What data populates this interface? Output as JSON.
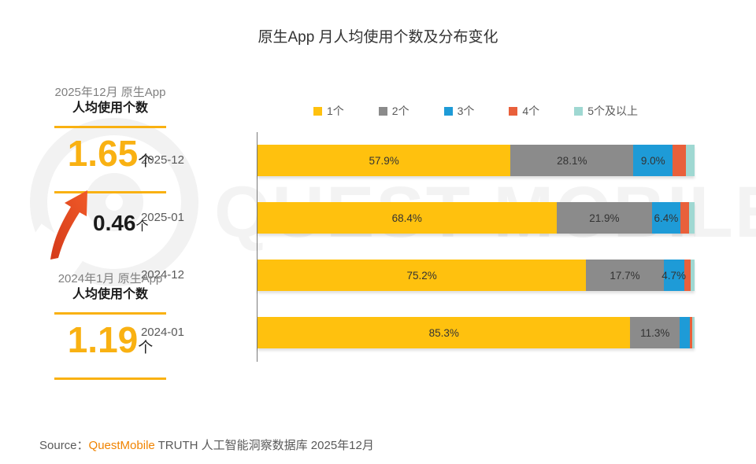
{
  "title": "原生App 月人均使用个数及分布变化",
  "colors": {
    "accent_yellow": "#F9B112",
    "arrow_red_dark": "#D43A1A",
    "arrow_red_light": "#F05A28",
    "brand_orange": "#F08300"
  },
  "left_panel": {
    "top": {
      "period": "2025年12月 原生App",
      "metric_label": "人均使用个数",
      "value": "1.65",
      "unit": "个"
    },
    "delta": {
      "icon": "up-arrow-icon",
      "value": "0.46",
      "unit": "个"
    },
    "bottom": {
      "period": "2024年1月 原生App",
      "metric_label": "人均使用个数",
      "value": "1.19",
      "unit": "个"
    }
  },
  "chart_data": {
    "type": "bar",
    "orientation": "horizontal-stacked",
    "unit": "percent",
    "categories": [
      "2025-12",
      "2025-01",
      "2024-12",
      "2024-01"
    ],
    "series": [
      {
        "name": "1个",
        "color": "#FFC10E",
        "values": [
          57.9,
          68.4,
          75.2,
          85.3
        ]
      },
      {
        "name": "2个",
        "color": "#8B8B8B",
        "values": [
          28.1,
          21.9,
          17.7,
          11.3
        ]
      },
      {
        "name": "3个",
        "color": "#1E9BD7",
        "values": [
          9.0,
          6.4,
          4.7,
          2.3
        ]
      },
      {
        "name": "4个",
        "color": "#E9603B",
        "values": [
          3.0,
          2.0,
          1.5,
          0.6
        ]
      },
      {
        "name": "5个及以上",
        "color": "#9FD8D2",
        "values": [
          2.0,
          1.3,
          0.9,
          0.5
        ]
      }
    ],
    "shown_labels": [
      [
        "57.9%",
        "28.1%",
        "9.0%",
        "",
        ""
      ],
      [
        "68.4%",
        "21.9%",
        "6.4%",
        "",
        ""
      ],
      [
        "75.2%",
        "17.7%",
        "4.7%",
        "",
        ""
      ],
      [
        "85.3%",
        "11.3%",
        "",
        "",
        ""
      ]
    ],
    "xlim": [
      0,
      100
    ],
    "grid": false,
    "legend_position": "top"
  },
  "watermark": {
    "text": "QUEST MOBILE"
  },
  "source": {
    "prefix": "Source：",
    "brand": "QuestMobile",
    "suffix": " TRUTH 人工智能洞察数据库 2025年12月"
  }
}
